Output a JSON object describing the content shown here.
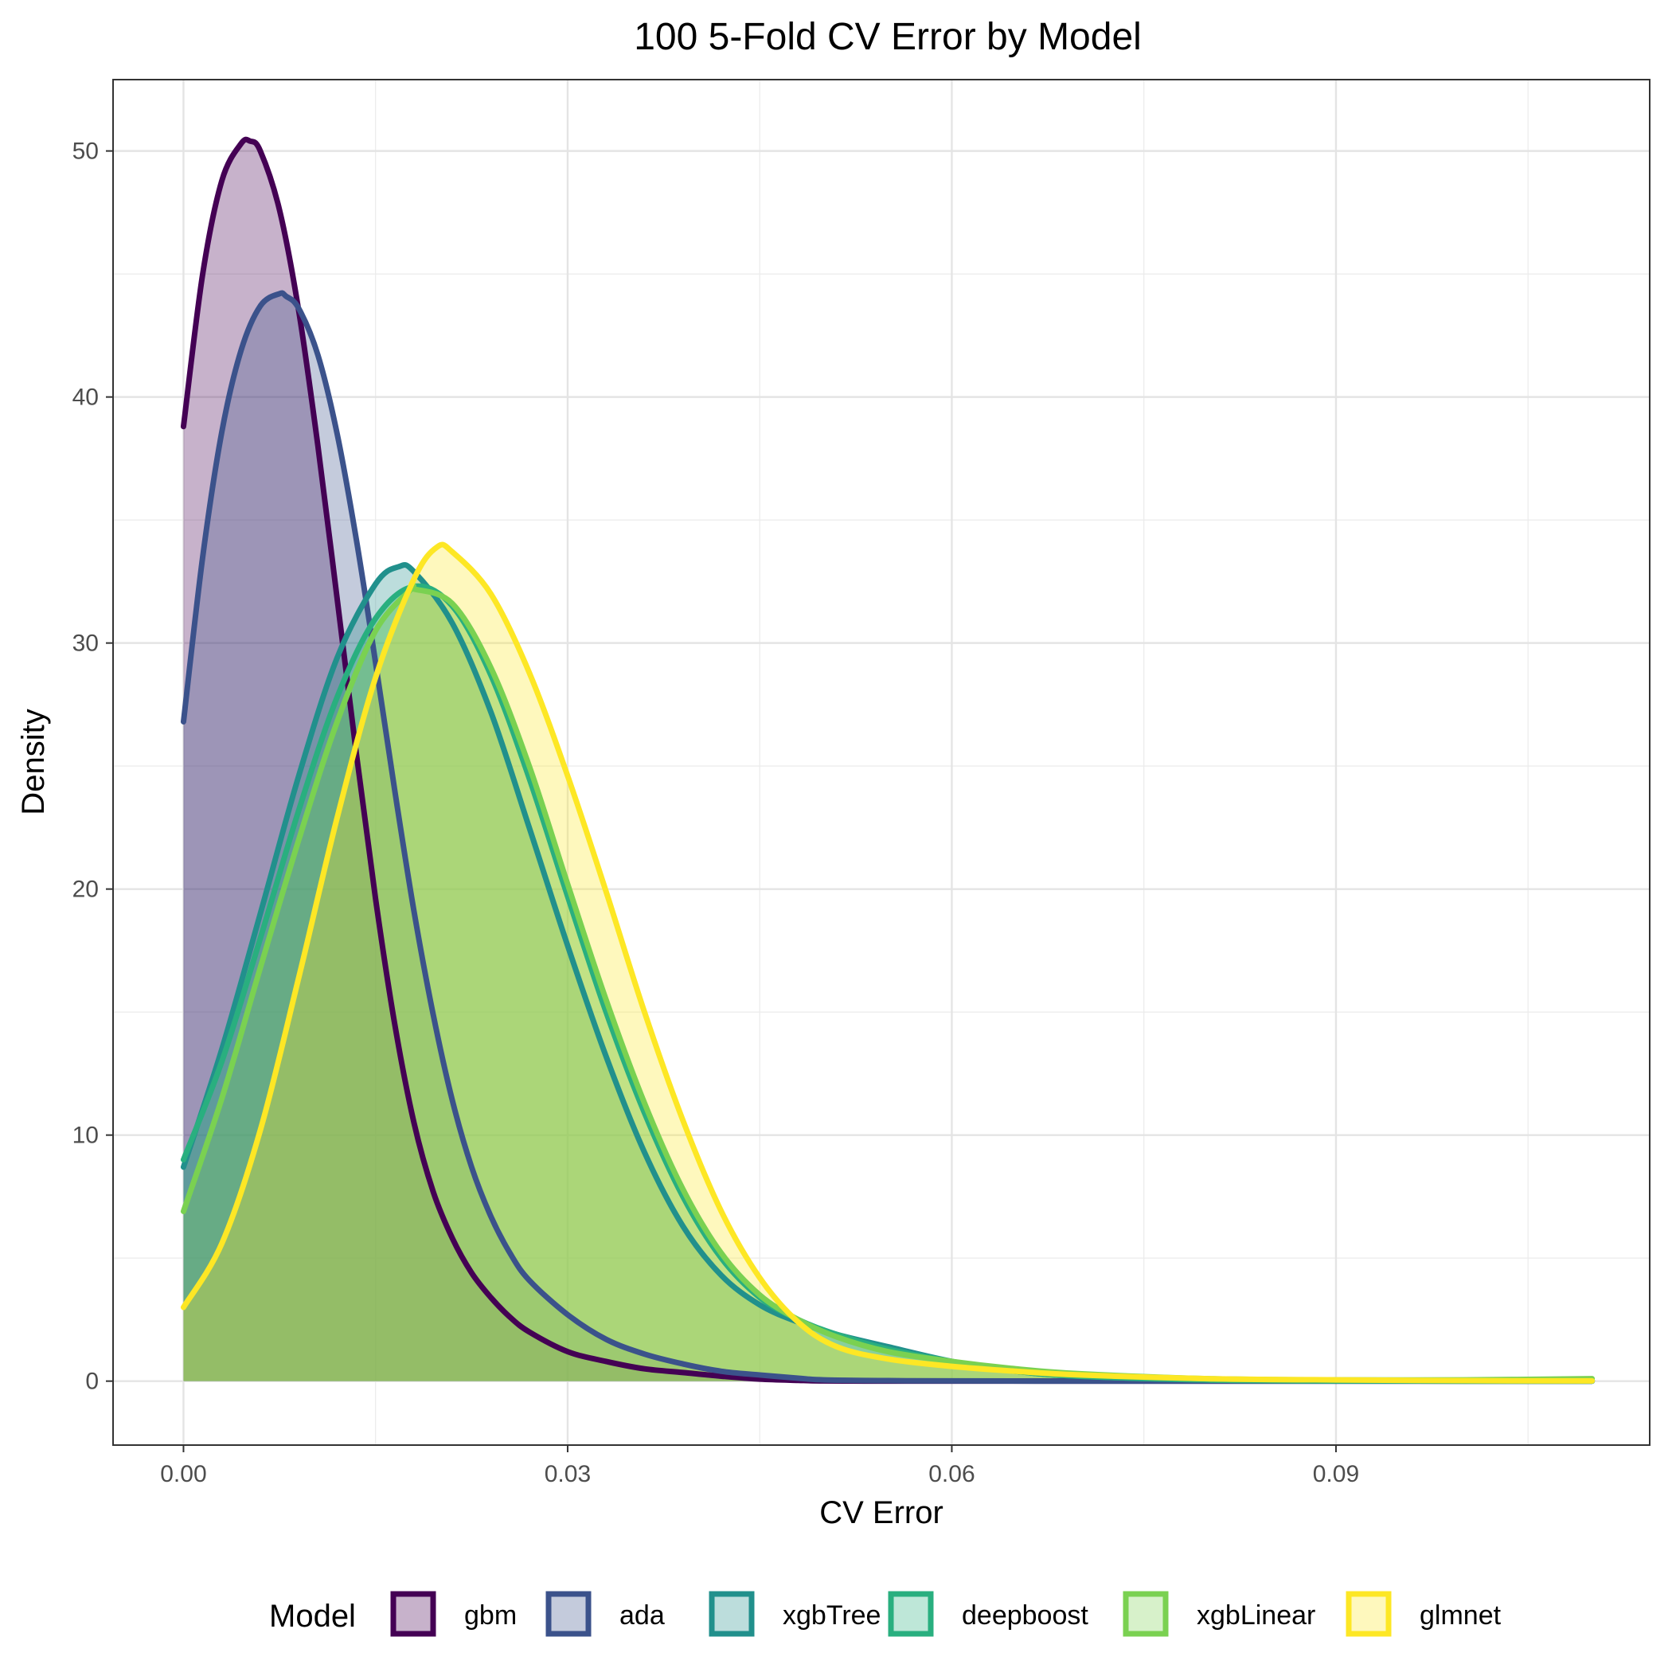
{
  "chart_data": {
    "type": "area",
    "title": "100 5-Fold CV Error by Model",
    "xlabel": "CV Error",
    "ylabel": "Density",
    "xlim": [
      -0.0055,
      0.1145
    ],
    "ylim": [
      -2.6,
      52.9
    ],
    "x_ticks": [
      0,
      0.03,
      0.06,
      0.09
    ],
    "x_tick_labels": [
      "0.00",
      "0.03",
      "0.06",
      "0.09"
    ],
    "y_ticks": [
      0,
      10,
      20,
      30,
      40,
      50
    ],
    "y_tick_labels": [
      "0",
      "10",
      "20",
      "30",
      "40",
      "50"
    ],
    "grid": true,
    "legend_position": "bottom",
    "legend_title": "Model",
    "series": [
      {
        "name": "gbm",
        "color": "#440154",
        "x": [
          0,
          0.0015,
          0.003,
          0.0045,
          0.0052,
          0.006,
          0.0075,
          0.009,
          0.0105,
          0.012,
          0.0135,
          0.015,
          0.0165,
          0.018,
          0.0195,
          0.021,
          0.0225,
          0.024,
          0.0255,
          0.027,
          0.03,
          0.033,
          0.036,
          0.039,
          0.042,
          0.045,
          0.048,
          0.05,
          0.055,
          0.06,
          0.07,
          0.08,
          0.09,
          0.1,
          0.11
        ],
        "values": [
          38.8,
          45.0,
          48.8,
          50.3,
          50.4,
          50.0,
          47.6,
          43.5,
          38.0,
          31.8,
          25.5,
          19.6,
          14.5,
          10.5,
          7.7,
          5.8,
          4.4,
          3.4,
          2.6,
          2.0,
          1.2,
          0.8,
          0.5,
          0.35,
          0.2,
          0.08,
          0.03,
          0.01,
          0,
          0,
          0,
          0,
          0,
          0,
          0
        ]
      },
      {
        "name": "ada",
        "color": "#3B528B",
        "x": [
          0,
          0.0015,
          0.003,
          0.0045,
          0.006,
          0.0075,
          0.008,
          0.009,
          0.0105,
          0.012,
          0.0135,
          0.015,
          0.0165,
          0.018,
          0.0195,
          0.021,
          0.0225,
          0.024,
          0.0255,
          0.027,
          0.03,
          0.033,
          0.036,
          0.039,
          0.042,
          0.045,
          0.048,
          0.05,
          0.055,
          0.06,
          0.07,
          0.08,
          0.09,
          0.1,
          0.11
        ],
        "values": [
          26.8,
          33.5,
          38.6,
          41.9,
          43.7,
          44.2,
          44.1,
          43.6,
          41.7,
          38.5,
          34.2,
          29.2,
          24.0,
          19.1,
          14.9,
          11.4,
          8.7,
          6.7,
          5.2,
          4.1,
          2.7,
          1.7,
          1.1,
          0.7,
          0.4,
          0.25,
          0.12,
          0.05,
          0.02,
          0.01,
          0,
          0,
          0,
          0,
          0
        ]
      },
      {
        "name": "xgbTree",
        "color": "#21908C",
        "x": [
          0,
          0.003,
          0.006,
          0.009,
          0.012,
          0.015,
          0.0168,
          0.018,
          0.021,
          0.024,
          0.027,
          0.03,
          0.033,
          0.036,
          0.039,
          0.042,
          0.045,
          0.048,
          0.051,
          0.055,
          0.06,
          0.065,
          0.07,
          0.08,
          0.09,
          0.1,
          0.11
        ],
        "values": [
          8.7,
          13.5,
          19.0,
          24.6,
          29.4,
          32.4,
          33.1,
          32.9,
          30.8,
          27.2,
          22.5,
          17.7,
          13.2,
          9.3,
          6.3,
          4.3,
          3.1,
          2.4,
          1.9,
          1.4,
          0.8,
          0.4,
          0.2,
          0.05,
          0.01,
          0,
          0
        ]
      },
      {
        "name": "deepboost",
        "color": "#29AF7F",
        "x": [
          0,
          0.003,
          0.006,
          0.009,
          0.012,
          0.015,
          0.018,
          0.021,
          0.024,
          0.027,
          0.03,
          0.033,
          0.036,
          0.039,
          0.042,
          0.045,
          0.048,
          0.051,
          0.055,
          0.06,
          0.065,
          0.07,
          0.08,
          0.09,
          0.1,
          0.11
        ],
        "values": [
          9.0,
          13.0,
          18.0,
          23.2,
          27.8,
          31.0,
          32.3,
          31.5,
          28.7,
          24.5,
          19.7,
          15.0,
          10.9,
          7.5,
          5.0,
          3.4,
          2.5,
          1.9,
          1.3,
          0.8,
          0.4,
          0.2,
          0.05,
          0.01,
          0,
          0
        ]
      },
      {
        "name": "xgbLinear",
        "color": "#7AD151",
        "x": [
          0,
          0.003,
          0.006,
          0.009,
          0.012,
          0.015,
          0.0178,
          0.018,
          0.021,
          0.024,
          0.027,
          0.03,
          0.033,
          0.036,
          0.039,
          0.042,
          0.045,
          0.048,
          0.051,
          0.055,
          0.06,
          0.065,
          0.07,
          0.08,
          0.09,
          0.1,
          0.11
        ],
        "values": [
          6.9,
          11.5,
          16.8,
          22.0,
          26.8,
          30.5,
          32.2,
          32.2,
          31.6,
          29.0,
          25.0,
          20.2,
          15.5,
          11.3,
          7.8,
          5.2,
          3.5,
          2.5,
          1.8,
          1.2,
          0.8,
          0.5,
          0.3,
          0.1,
          0.05,
          0.05,
          0.1
        ]
      },
      {
        "name": "glmnet",
        "color": "#FDE725",
        "x": [
          0,
          0.003,
          0.006,
          0.009,
          0.012,
          0.015,
          0.018,
          0.0198,
          0.021,
          0.024,
          0.027,
          0.03,
          0.033,
          0.036,
          0.039,
          0.042,
          0.045,
          0.048,
          0.051,
          0.055,
          0.06,
          0.065,
          0.07,
          0.08,
          0.09,
          0.1,
          0.11
        ],
        "values": [
          3.0,
          5.6,
          10.2,
          16.4,
          22.9,
          28.6,
          32.6,
          33.9,
          33.7,
          32.0,
          28.8,
          24.6,
          19.9,
          15.0,
          10.6,
          6.9,
          4.2,
          2.4,
          1.4,
          0.9,
          0.6,
          0.4,
          0.25,
          0.1,
          0.05,
          0.02,
          0.01
        ]
      }
    ]
  }
}
